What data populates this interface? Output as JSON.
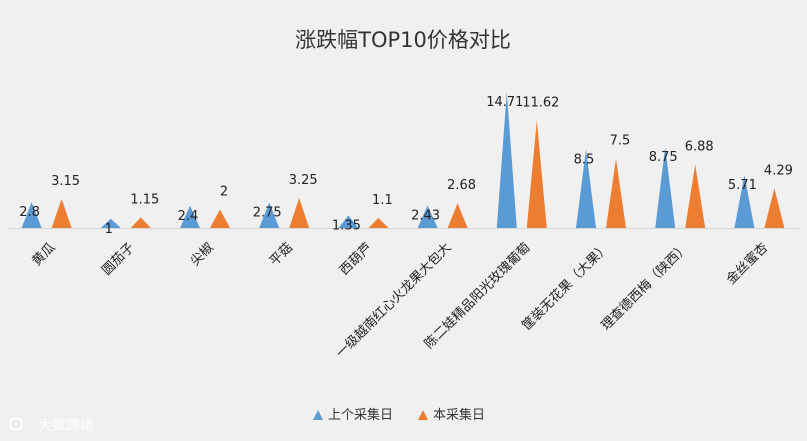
{
  "chart_data": {
    "type": "bar",
    "shape": "triangle",
    "title": "涨跌幅TOP10价格对比",
    "categories": [
      "黄瓜",
      "圆茄子",
      "尖椒",
      "平菇",
      "西葫芦",
      "一级越南红心火龙果大包大",
      "陈二娃精品阳光玫瑰葡萄",
      "筐装无花果（大果）",
      "理查德西梅（陕西）",
      "金丝蜜杏"
    ],
    "series": [
      {
        "name": "上个采集日",
        "color": "#5b9bd5",
        "values": [
          2.8,
          1,
          2.4,
          2.75,
          1.35,
          2.43,
          14.71,
          8.5,
          8.75,
          5.71
        ]
      },
      {
        "name": "本采集日",
        "color": "#ed7d31",
        "values": [
          3.15,
          1.15,
          2,
          3.25,
          1.1,
          2.68,
          11.62,
          7.5,
          6.88,
          4.29
        ]
      }
    ],
    "data_labels": [
      [
        "2.8",
        "1",
        "2.4",
        "2.75",
        "1.35",
        "2.43",
        "14.71",
        "8.5",
        "8.75",
        "5.71"
      ],
      [
        "3.15",
        "1.15",
        "2",
        "3.25",
        "1.1",
        "2.68",
        "11.62",
        "7.5",
        "6.88",
        "4.29"
      ]
    ],
    "legend_position": "bottom",
    "grid": false
  },
  "watermark": "大数跨境"
}
